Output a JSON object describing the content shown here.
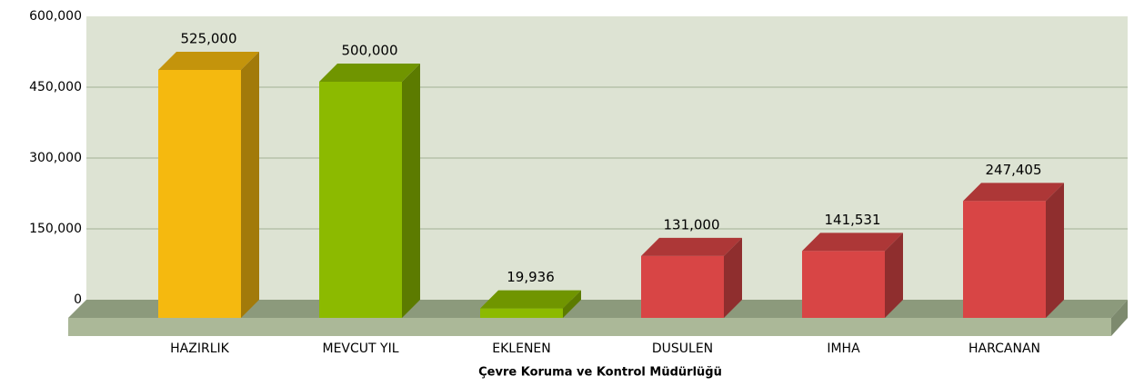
{
  "chart_data": {
    "type": "bar3d",
    "x_label": "Çevre Koruma ve Kontrol Müdürlüğü",
    "categories": [
      "HAZIRLIK",
      "MEVCUT YIL",
      "EKLENEN",
      "DUSULEN",
      "IMHA",
      "HARCANAN"
    ],
    "values": [
      525000,
      500000,
      19936,
      131000,
      141531,
      247405
    ],
    "value_labels": [
      "525,000",
      "500,000",
      "19,936",
      "131,000",
      "141,531",
      "247,405"
    ],
    "colors": [
      "#f5b90f",
      "#8cba00",
      "#8cba00",
      "#d84545",
      "#d84545",
      "#d84545"
    ],
    "ylim": [
      0,
      600000
    ],
    "yticks": [
      0,
      {
        "value": 150000,
        "label": "150,000"
      },
      {
        "value": 300000,
        "label": "300,000"
      },
      {
        "value": 450000,
        "label": "450,000"
      },
      {
        "value": 600000,
        "label": "600,000"
      }
    ],
    "grid": true
  }
}
